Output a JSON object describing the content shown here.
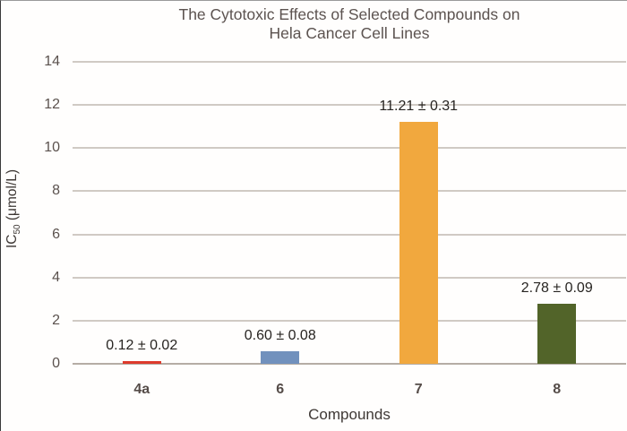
{
  "figure": {
    "title_line1": "The Cytotoxic Effects of Selected Compounds on",
    "title_line2": "Hela Cancer Cell Lines"
  },
  "chart_data": {
    "type": "bar",
    "title": "The Cytotoxic Effects of Selected Compounds on Hela Cancer Cell Lines",
    "categories": [
      "4a",
      "6",
      "7",
      "8"
    ],
    "values": [
      0.12,
      0.6,
      11.21,
      2.78
    ],
    "errors": [
      0.02,
      0.08,
      0.31,
      0.09
    ],
    "value_labels": [
      "0.12 ± 0.02",
      "0.60 ± 0.08",
      "11.21 ± 0.31",
      "2.78 ± 0.09"
    ],
    "bar_colors": [
      "#dd3a2c",
      "#7191bd",
      "#f1a83e",
      "#526429"
    ],
    "xlabel": "Compounds",
    "ylabel": "IC50 (μmol/L)",
    "ylabel_parts": {
      "prefix": "IC",
      "subscript": "50",
      "suffix": " (μmol/L)"
    },
    "ylim": [
      0,
      14
    ],
    "ytick_step": 2,
    "yticks": [
      0,
      2,
      4,
      6,
      8,
      10,
      12,
      14
    ],
    "grid": "horizontal",
    "legend": "none",
    "style": {
      "gridline_color": "#d0cac4",
      "baseline_color": "#b5ada5",
      "title_color": "#5c5350",
      "tick_color": "#5b524e",
      "value_label_color": "#272421",
      "background": "#fffefd"
    }
  }
}
